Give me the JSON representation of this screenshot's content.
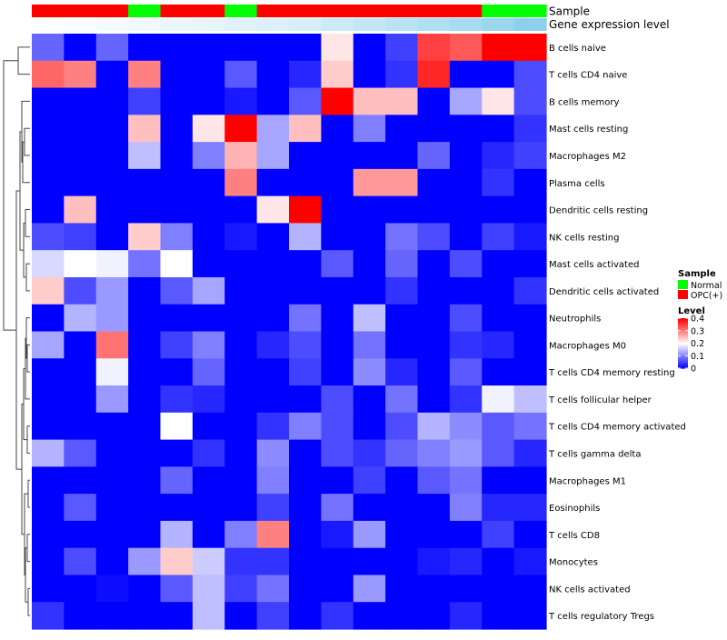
{
  "chart_data": {
    "type": "heatmap",
    "annotation_labels": {
      "sample": "Sample",
      "gene_expression": "Gene expression level"
    },
    "sample_groups": [
      "OPC(+)",
      "OPC(+)",
      "OPC(+)",
      "Normal",
      "OPC(+)",
      "OPC(+)",
      "Normal",
      "OPC(+)",
      "OPC(+)",
      "OPC(+)",
      "OPC(+)",
      "OPC(+)",
      "OPC(+)",
      "OPC(+)",
      "Normal",
      "Normal"
    ],
    "gene_expression_level": [
      0.02,
      0.05,
      0.08,
      0.12,
      0.16,
      0.2,
      0.25,
      0.3,
      0.35,
      0.42,
      0.5,
      0.58,
      0.66,
      0.74,
      0.84,
      0.95
    ],
    "rows": [
      "B cells naive",
      "T cells CD4 naive",
      "B cells memory",
      "Mast cells resting",
      "Macrophages M2",
      "Plasma cells",
      "Dendritic cells resting",
      "NK cells resting",
      "Mast cells activated",
      "Dendritic cells activated",
      "Neutrophils",
      "Macrophages M0",
      "T cells CD4 memory resting",
      "T cells follicular helper",
      "T cells CD4 memory activated",
      "T cells gamma delta",
      "Macrophages M1",
      "Eosinophils",
      "T cells CD8",
      "Monocytes",
      "NK cells activated",
      "T cells regulatory  Tregs"
    ],
    "values": [
      [
        0.08,
        0,
        0.08,
        0,
        0,
        0,
        0,
        0,
        0,
        0.22,
        0,
        0.05,
        0.35,
        0.33,
        0.4,
        0.4
      ],
      [
        0.32,
        0.3,
        0,
        0.3,
        0,
        0,
        0.07,
        0,
        0.03,
        0.24,
        0,
        0.04,
        0.37,
        0,
        0,
        0.06
      ],
      [
        0,
        0,
        0,
        0.05,
        0,
        0,
        0.02,
        0,
        0.07,
        0.4,
        0.25,
        0.25,
        0,
        0.13,
        0.22,
        0.06
      ],
      [
        0,
        0,
        0,
        0.25,
        0,
        0.22,
        0.4,
        0.13,
        0.25,
        0,
        0.1,
        0,
        0,
        0,
        0,
        0.04
      ],
      [
        0,
        0,
        0,
        0.15,
        0,
        0.1,
        0.26,
        0.13,
        0,
        0,
        0,
        0,
        0.08,
        0,
        0.03,
        0.05
      ],
      [
        0,
        0,
        0,
        0,
        0,
        0,
        0.3,
        0,
        0,
        0,
        0.28,
        0.28,
        0,
        0,
        0.04,
        0
      ],
      [
        0,
        0.25,
        0,
        0,
        0,
        0,
        0,
        0.22,
        0.4,
        0,
        0,
        0,
        0,
        0,
        0,
        0
      ],
      [
        0.06,
        0.05,
        0,
        0.24,
        0.1,
        0,
        0.02,
        0,
        0.14,
        0,
        0,
        0.09,
        0.06,
        0,
        0.05,
        0.02
      ],
      [
        0.17,
        0.2,
        0.19,
        0.09,
        0.2,
        0,
        0,
        0,
        0,
        0.07,
        0,
        0.08,
        0,
        0.06,
        0,
        0
      ],
      [
        0.24,
        0.06,
        0.12,
        0,
        0.07,
        0.13,
        0,
        0,
        0,
        0,
        0,
        0.04,
        0,
        0,
        0,
        0.04
      ],
      [
        0,
        0.14,
        0.12,
        0,
        0,
        0,
        0,
        0,
        0.09,
        0,
        0.15,
        0,
        0,
        0.06,
        0,
        0
      ],
      [
        0.13,
        0,
        0.31,
        0,
        0.05,
        0.1,
        0,
        0.03,
        0.06,
        0,
        0.09,
        0,
        0,
        0.04,
        0.03,
        0
      ],
      [
        0,
        0,
        0.19,
        0,
        0,
        0.08,
        0,
        0,
        0.05,
        0,
        0.11,
        0.03,
        0,
        0.07,
        0,
        0
      ],
      [
        0,
        0,
        0.12,
        0,
        0.04,
        0.03,
        0,
        0,
        0,
        0.06,
        0,
        0.09,
        0,
        0.04,
        0.19,
        0.15
      ],
      [
        0,
        0,
        0,
        0,
        0.2,
        0,
        0,
        0.04,
        0.1,
        0.06,
        0,
        0.06,
        0.14,
        0.11,
        0.07,
        0.09
      ],
      [
        0.14,
        0.07,
        0,
        0,
        0,
        0.04,
        0,
        0.11,
        0,
        0.06,
        0.04,
        0.08,
        0.1,
        0.12,
        0.07,
        0.03
      ],
      [
        0,
        0,
        0,
        0,
        0.08,
        0,
        0,
        0.1,
        0,
        0,
        0.05,
        0,
        0.07,
        0.09,
        0,
        0
      ],
      [
        0,
        0.07,
        0,
        0,
        0,
        0,
        0,
        0.05,
        0,
        0.09,
        0,
        0,
        0,
        0.1,
        0.03,
        0.03
      ],
      [
        0,
        0,
        0,
        0,
        0.14,
        0,
        0.1,
        0.3,
        0,
        0.02,
        0.12,
        0,
        0,
        0,
        0.05,
        0
      ],
      [
        0,
        0.06,
        0,
        0.12,
        0.24,
        0.16,
        0.04,
        0.04,
        0,
        0,
        0,
        0,
        0.02,
        0.03,
        0,
        0.02
      ],
      [
        0,
        0,
        0.01,
        0,
        0.07,
        0.15,
        0.05,
        0.09,
        0,
        0,
        0.12,
        0,
        0,
        0,
        0,
        0
      ],
      [
        0.04,
        0,
        0,
        0,
        0,
        0.15,
        0,
        0.05,
        0,
        0.04,
        0,
        0,
        0,
        0.03,
        0,
        0
      ]
    ],
    "color_scale": {
      "min": 0,
      "mid": 0.2,
      "max": 0.4,
      "low_color": "#0000ff",
      "mid_color": "#ffffff",
      "high_color": "#ff0000"
    },
    "legend": {
      "sample_title": "Sample",
      "sample_items": [
        {
          "label": "Normal",
          "color": "#00ff00"
        },
        {
          "label": "OPC(+)",
          "color": "#ff0000"
        }
      ],
      "level_title": "Level",
      "level_ticks": [
        "0.4",
        "0.3",
        "0.2",
        "0.1",
        "0"
      ],
      "level_tick_values": [
        0.4,
        0.3,
        0.2,
        0.1,
        0
      ]
    },
    "expression_colors": {
      "low": "#ffffff",
      "high": "#87ceeb"
    },
    "row_dendrogram": "hierarchical clustering on rows (left)"
  }
}
